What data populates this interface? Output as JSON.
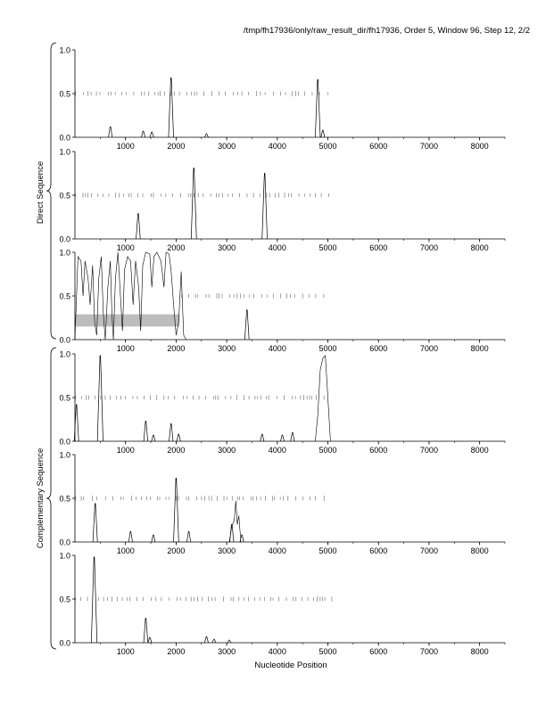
{
  "header": {
    "title": "/tmp/fh17936/only/raw_result_dir/fh17936, Order 5, Window 96, Step 12, 2/2"
  },
  "labels": {
    "xlabel": "Nucleotide Position",
    "direct_group": "Direct Sequence",
    "complementary_group": "Complementary Sequence"
  },
  "chart_data": [
    {
      "type": "line",
      "group": "Direct Sequence",
      "frame": 1,
      "xlim": [
        0,
        8500
      ],
      "ylim": [
        0,
        1
      ],
      "yticks": [
        "0.0",
        "0.5",
        "1.0"
      ],
      "xticks": [
        1000,
        2000,
        3000,
        4000,
        5000,
        6000,
        7000,
        8000
      ],
      "midline_extent": [
        0,
        5100
      ],
      "peaks": [
        [
          700,
          0.12
        ],
        [
          1350,
          0.07
        ],
        [
          1520,
          0.06
        ],
        [
          1900,
          0.68
        ],
        [
          2600,
          0.04
        ],
        [
          4800,
          0.66
        ],
        [
          4900,
          0.08
        ]
      ]
    },
    {
      "type": "line",
      "group": "Direct Sequence",
      "frame": 2,
      "xlim": [
        0,
        8500
      ],
      "ylim": [
        0,
        1
      ],
      "yticks": [
        "0.0",
        "0.5",
        "1.0"
      ],
      "xticks": [
        1000,
        2000,
        3000,
        4000,
        5000,
        6000,
        7000,
        8000
      ],
      "midline_extent": [
        0,
        5100
      ],
      "peaks": [
        [
          1250,
          0.29
        ],
        [
          2350,
          0.81
        ],
        [
          3750,
          0.75
        ]
      ]
    },
    {
      "type": "line",
      "group": "Direct Sequence",
      "frame": 3,
      "xlim": [
        0,
        8500
      ],
      "ylim": [
        0,
        1
      ],
      "yticks": [
        "0.0",
        "0.5",
        "1.0"
      ],
      "xticks": [
        1000,
        2000,
        3000,
        4000,
        5000,
        6000,
        7000,
        8000
      ],
      "midline_extent": [
        2100,
        4950
      ],
      "highlight": {
        "x": [
          0,
          2050
        ],
        "y": [
          0.15,
          0.29
        ]
      },
      "trace": [
        [
          0,
          0.0
        ],
        [
          60,
          0.95
        ],
        [
          120,
          0.9
        ],
        [
          160,
          0.5
        ],
        [
          200,
          0.9
        ],
        [
          260,
          0.7
        ],
        [
          300,
          0.4
        ],
        [
          350,
          0.85
        ],
        [
          390,
          0.2
        ],
        [
          430,
          0.05
        ],
        [
          470,
          0.7
        ],
        [
          520,
          0.95
        ],
        [
          560,
          0.3
        ],
        [
          600,
          0.0
        ],
        [
          650,
          0.6
        ],
        [
          700,
          0.9
        ],
        [
          730,
          0.3
        ],
        [
          760,
          0.0
        ],
        [
          800,
          0.7
        ],
        [
          850,
          1.0
        ],
        [
          900,
          0.5
        ],
        [
          940,
          0.1
        ],
        [
          980,
          0.8
        ],
        [
          1040,
          0.95
        ],
        [
          1100,
          0.9
        ],
        [
          1150,
          0.4
        ],
        [
          1200,
          0.9
        ],
        [
          1260,
          0.6
        ],
        [
          1300,
          0.1
        ],
        [
          1340,
          0.85
        ],
        [
          1400,
          1.0
        ],
        [
          1480,
          0.98
        ],
        [
          1520,
          0.6
        ],
        [
          1560,
          0.95
        ],
        [
          1620,
          1.0
        ],
        [
          1700,
          0.9
        ],
        [
          1760,
          0.6
        ],
        [
          1800,
          1.0
        ],
        [
          1860,
          0.98
        ],
        [
          1900,
          0.8
        ],
        [
          1950,
          0.4
        ],
        [
          2000,
          0.05
        ],
        [
          2050,
          0.2
        ],
        [
          2100,
          0.78
        ],
        [
          2150,
          0.05
        ],
        [
          2200,
          0.0
        ]
      ],
      "peaks": [
        [
          3400,
          0.34
        ]
      ]
    },
    {
      "type": "line",
      "group": "Complementary Sequence",
      "frame": 1,
      "xlim": [
        0,
        8500
      ],
      "ylim": [
        0,
        1
      ],
      "yticks": [
        "0.0",
        "0.5",
        "1.0"
      ],
      "xticks": [
        1000,
        2000,
        3000,
        4000,
        5000,
        6000,
        7000,
        8000
      ],
      "midline_extent": [
        0,
        5050
      ],
      "peaks": [
        [
          30,
          0.42
        ],
        [
          500,
          0.98
        ],
        [
          1400,
          0.23
        ],
        [
          1550,
          0.07
        ],
        [
          1900,
          0.2
        ],
        [
          2050,
          0.08
        ],
        [
          3700,
          0.08
        ],
        [
          4100,
          0.07
        ],
        [
          4300,
          0.1
        ]
      ],
      "trace": [
        [
          4750,
          0.0
        ],
        [
          4800,
          0.3
        ],
        [
          4850,
          0.82
        ],
        [
          4900,
          0.95
        ],
        [
          4950,
          0.98
        ],
        [
          5000,
          0.5
        ],
        [
          5050,
          0.0
        ]
      ]
    },
    {
      "type": "line",
      "group": "Complementary Sequence",
      "frame": 2,
      "xlim": [
        0,
        8500
      ],
      "ylim": [
        0,
        1
      ],
      "yticks": [
        "0.0",
        "0.5",
        "1.0"
      ],
      "xticks": [
        1000,
        2000,
        3000,
        4000,
        5000,
        6000,
        7000,
        8000
      ],
      "midline_extent": [
        0,
        5000
      ],
      "peaks": [
        [
          400,
          0.44
        ],
        [
          1100,
          0.12
        ],
        [
          1550,
          0.08
        ],
        [
          2000,
          0.73
        ],
        [
          2250,
          0.12
        ],
        [
          3100,
          0.2
        ],
        [
          3300,
          0.08
        ]
      ],
      "trace": [
        [
          3050,
          0.0
        ],
        [
          3100,
          0.18
        ],
        [
          3150,
          0.25
        ],
        [
          3180,
          0.47
        ],
        [
          3210,
          0.2
        ],
        [
          3240,
          0.3
        ],
        [
          3280,
          0.0
        ]
      ]
    },
    {
      "type": "line",
      "group": "Complementary Sequence",
      "frame": 3,
      "xlim": [
        0,
        8500
      ],
      "ylim": [
        0,
        1
      ],
      "yticks": [
        "0.0",
        "0.5",
        "1.0"
      ],
      "xticks": [
        1000,
        2000,
        3000,
        4000,
        5000,
        6000,
        7000,
        8000
      ],
      "midline_extent": [
        0,
        5100
      ],
      "peaks": [
        [
          380,
          0.98
        ],
        [
          1400,
          0.28
        ],
        [
          1480,
          0.06
        ],
        [
          2600,
          0.07
        ],
        [
          2750,
          0.04
        ],
        [
          3050,
          0.03
        ]
      ]
    }
  ]
}
